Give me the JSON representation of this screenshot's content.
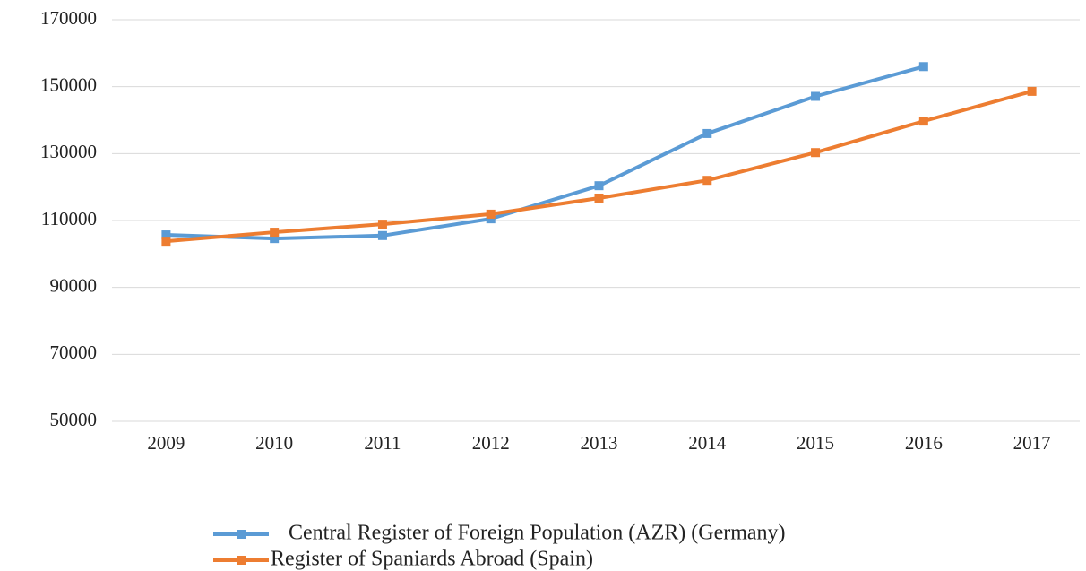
{
  "chart_data": {
    "type": "line",
    "categories": [
      "2009",
      "2010",
      "2011",
      "2012",
      "2013",
      "2014",
      "2015",
      "2016",
      "2017"
    ],
    "series": [
      {
        "name": "Central Register of Foreign Population (AZR) (Germany)",
        "color": "#5b9bd5",
        "values": [
          105700,
          104600,
          105500,
          110500,
          120400,
          136000,
          147100,
          156000,
          null
        ]
      },
      {
        "name": "Register of Spaniards Abroad (Spain)",
        "color": "#ed7d31",
        "values": [
          103800,
          106500,
          108900,
          111900,
          116700,
          122000,
          130300,
          139700,
          148600
        ]
      }
    ],
    "ylim": [
      50000,
      170000
    ],
    "yticks": [
      50000,
      70000,
      90000,
      110000,
      130000,
      150000,
      170000
    ],
    "grid": true,
    "legend": "bottom"
  }
}
